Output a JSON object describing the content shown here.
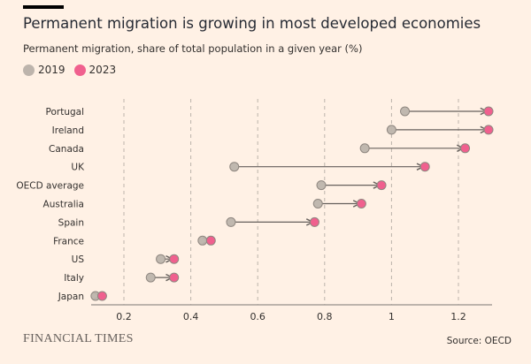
{
  "chart_data": {
    "type": "dumbbell",
    "title": "Permanent migration is growing in most developed economies",
    "subtitle": "Permanent migration, share of total population in a given year (%)",
    "categories": [
      "Portugal",
      "Ireland",
      "Canada",
      "UK",
      "OECD average",
      "Australia",
      "Spain",
      "France",
      "US",
      "Italy",
      "Japan"
    ],
    "series": [
      {
        "name": "2019",
        "color": "#BDB4AC",
        "values": [
          1.04,
          1.0,
          0.92,
          0.53,
          0.79,
          0.78,
          0.52,
          0.435,
          0.31,
          0.28,
          0.115
        ]
      },
      {
        "name": "2023",
        "color": "#F0608E",
        "values": [
          1.29,
          1.29,
          1.22,
          1.1,
          0.97,
          0.91,
          0.77,
          0.46,
          0.35,
          0.35,
          0.135
        ]
      }
    ],
    "xlim": [
      0.1,
      1.3
    ],
    "xticks": [
      0.2,
      0.4,
      0.6,
      0.8,
      1,
      1.2
    ],
    "xtick_labels": [
      "0.2",
      "0.4",
      "0.6",
      "0.8",
      "1",
      "1.2"
    ],
    "grid": "vertical dashed",
    "legend": "top-left"
  },
  "footer": {
    "brand": "FINANCIAL TIMES",
    "source": "Source: OECD"
  }
}
